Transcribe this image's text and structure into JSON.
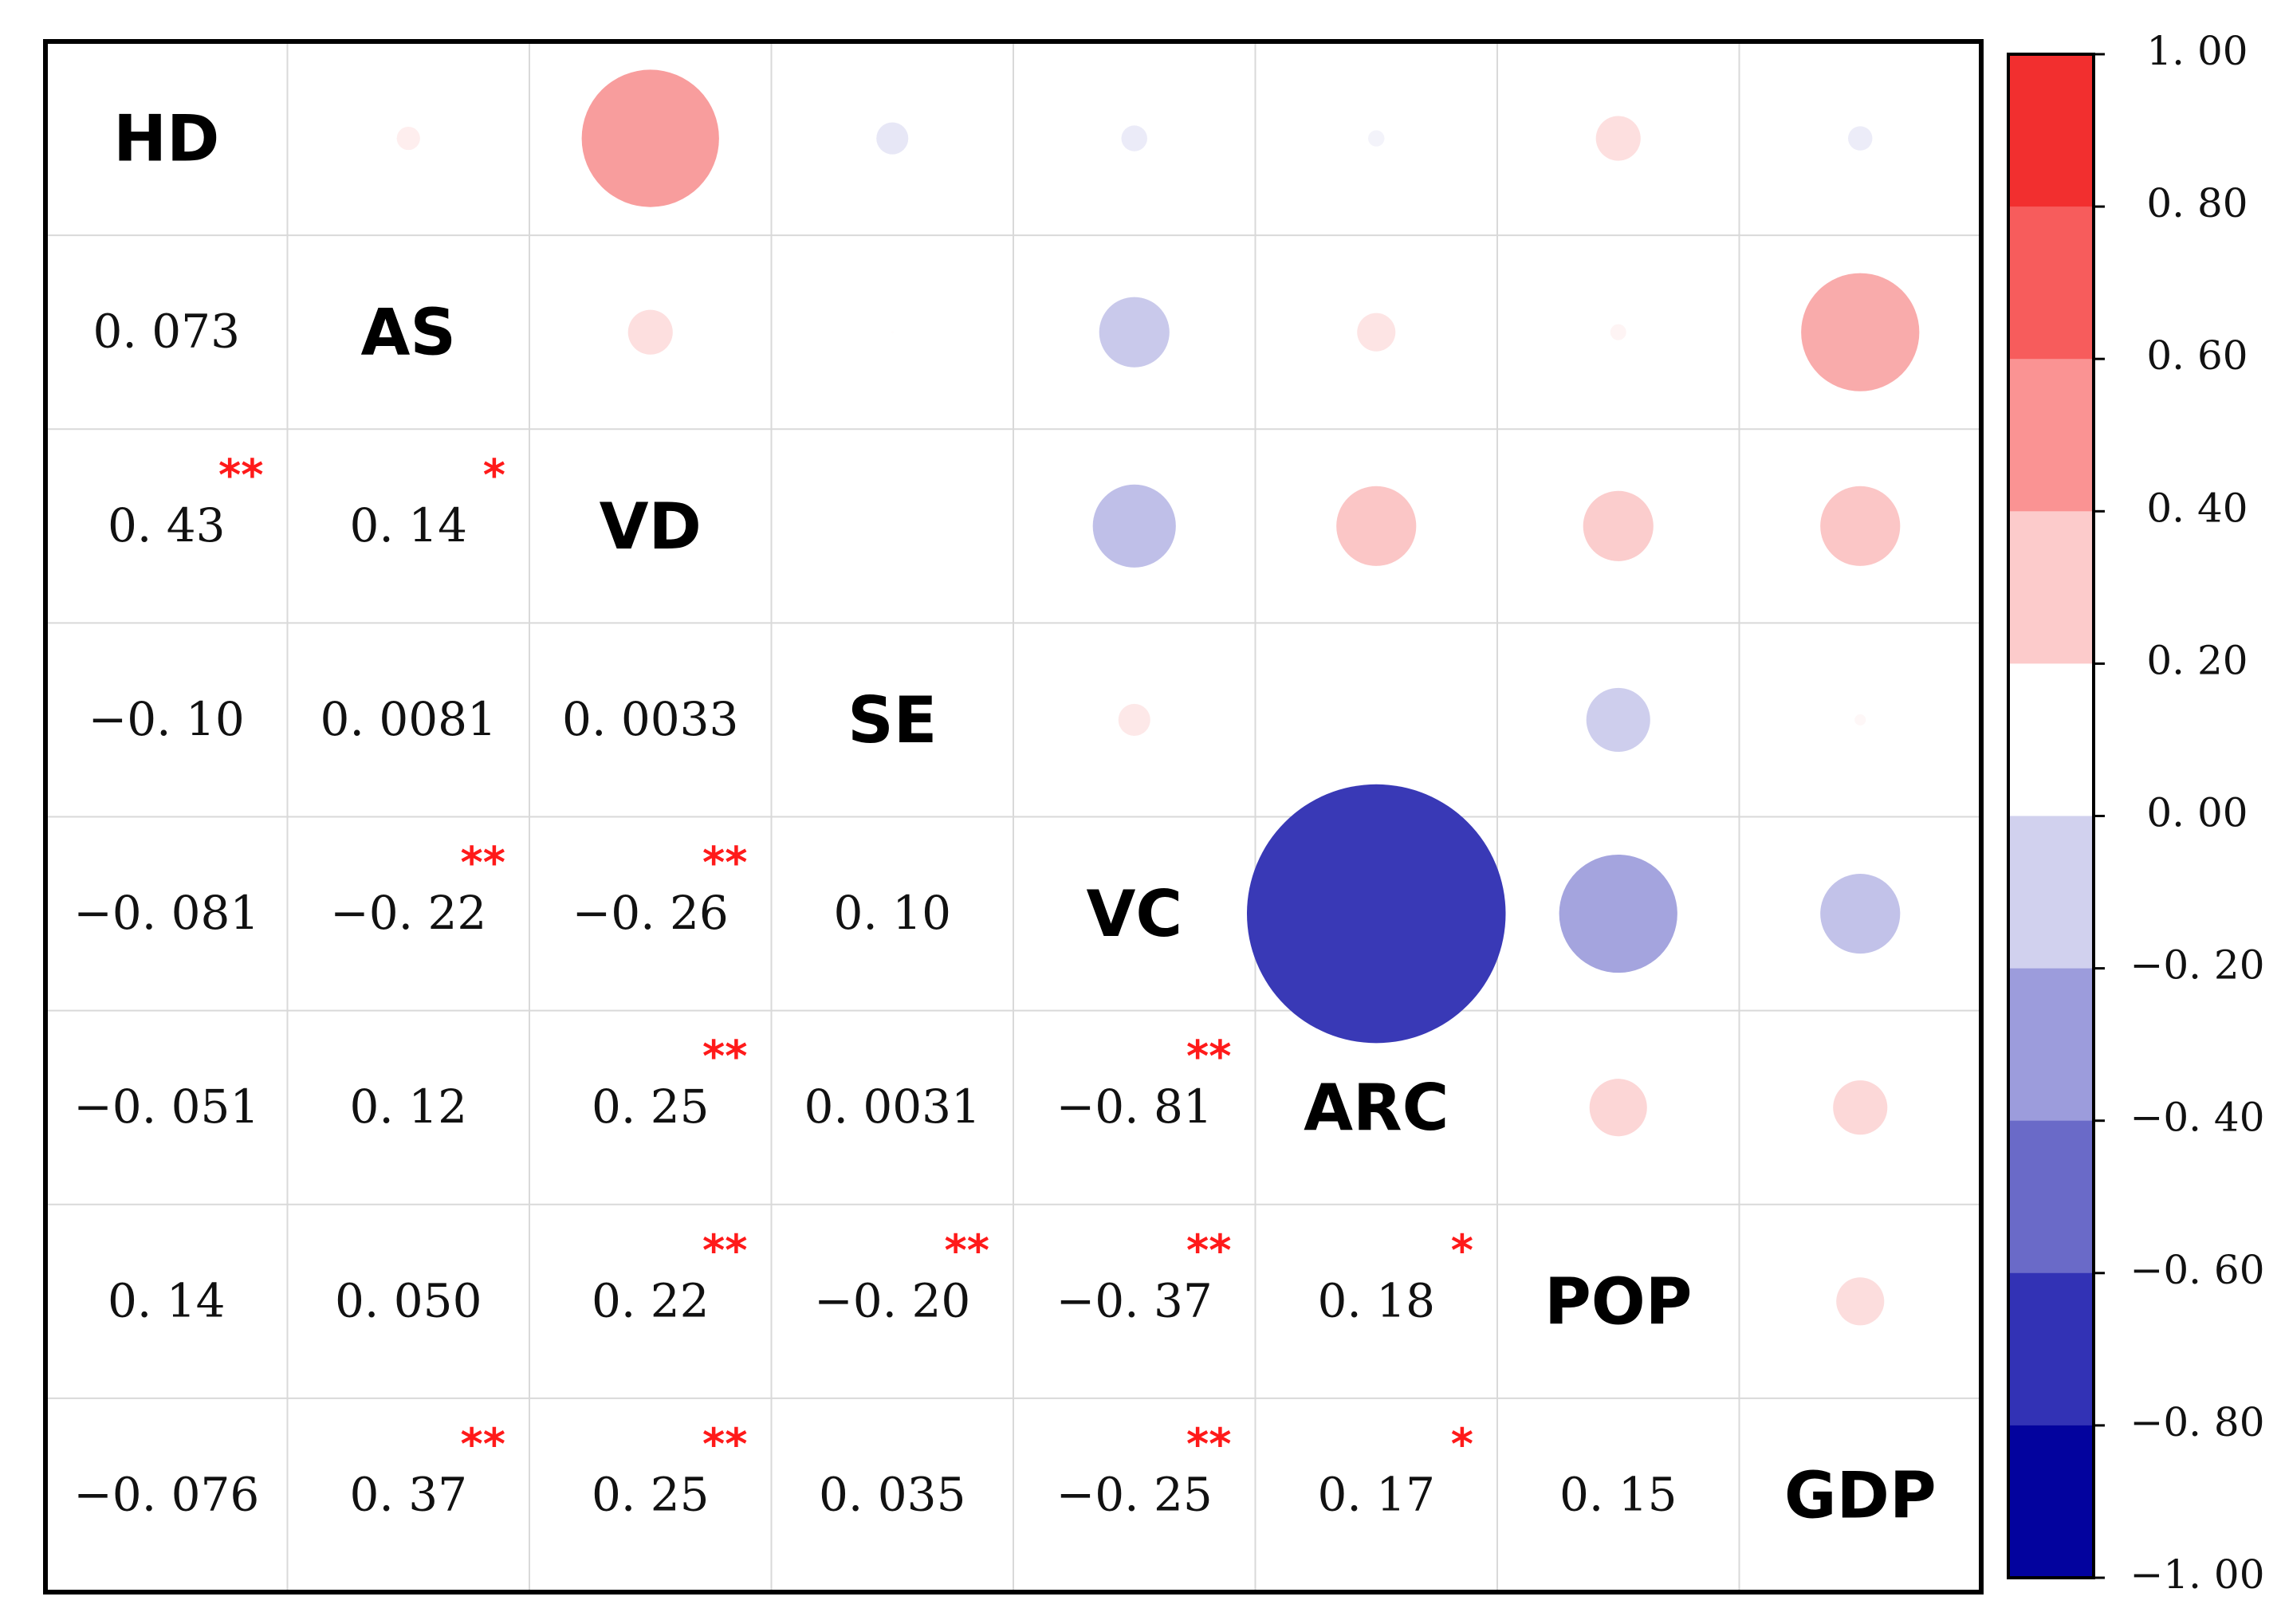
{
  "chart_data": {
    "type": "heatmap",
    "title": "",
    "variables": [
      "HD",
      "AS",
      "VD",
      "SE",
      "VC",
      "ARC",
      "POP",
      "GDP"
    ],
    "matrix": [
      [
        1.0,
        0.073,
        0.43,
        -0.1,
        -0.081,
        -0.051,
        0.14,
        -0.076
      ],
      [
        0.073,
        1.0,
        0.14,
        0.0081,
        -0.22,
        0.12,
        0.05,
        0.37
      ],
      [
        0.43,
        0.14,
        1.0,
        0.0033,
        -0.26,
        0.25,
        0.22,
        0.25
      ],
      [
        -0.1,
        0.0081,
        0.0033,
        1.0,
        0.1,
        0.0031,
        -0.2,
        0.035
      ],
      [
        -0.081,
        -0.22,
        -0.26,
        0.1,
        1.0,
        -0.81,
        -0.37,
        -0.25
      ],
      [
        -0.051,
        0.12,
        0.25,
        0.0031,
        -0.81,
        1.0,
        0.18,
        0.17
      ],
      [
        0.14,
        0.05,
        0.22,
        -0.2,
        -0.37,
        0.18,
        1.0,
        0.15
      ],
      [
        -0.076,
        0.37,
        0.25,
        0.035,
        -0.25,
        0.17,
        0.15,
        1.0
      ]
    ],
    "lower_labels": [
      [],
      [
        "0. 073"
      ],
      [
        "0. 43",
        "0. 14"
      ],
      [
        "−0. 10",
        "0. 0081",
        "0. 0033"
      ],
      [
        "−0. 081",
        "−0. 22",
        "−0. 26",
        "0. 10"
      ],
      [
        "−0. 051",
        "0. 12",
        "0. 25",
        "0. 0031",
        "−0. 81"
      ],
      [
        "0. 14",
        "0. 050",
        "0. 22",
        "−0. 20",
        "−0. 37",
        "0. 18"
      ],
      [
        "−0. 076",
        "0. 37",
        "0. 25",
        "0. 035",
        "−0. 25",
        "0. 17",
        "0. 15"
      ]
    ],
    "significance": [
      [],
      [
        ""
      ],
      [
        "**",
        "*"
      ],
      [
        "",
        "",
        ""
      ],
      [
        "",
        "**",
        "**",
        ""
      ],
      [
        "",
        "",
        "**",
        "",
        "**"
      ],
      [
        "",
        "",
        "**",
        "**",
        "**",
        "*"
      ],
      [
        "",
        "**",
        "**",
        "",
        "**",
        "*",
        ""
      ]
    ],
    "colorbar": {
      "range": [
        -1.0,
        1.0
      ],
      "tick_labels": [
        "1. 00",
        "0. 80",
        "0. 60",
        "0. 40",
        "0. 20",
        "0. 00",
        "−0. 20",
        "−0. 40",
        "−0. 60",
        "−0. 80",
        "−1. 00"
      ],
      "bins_top_to_bottom": [
        "#f22f2f",
        "#f75c5c",
        "#fa9393",
        "#fccbcb",
        "#ffffff",
        "#d1d1ee",
        "#9c9cdc",
        "#6a6ac8",
        "#3232b5",
        "#03039e"
      ]
    },
    "significance_color": "#ff1a1a"
  }
}
